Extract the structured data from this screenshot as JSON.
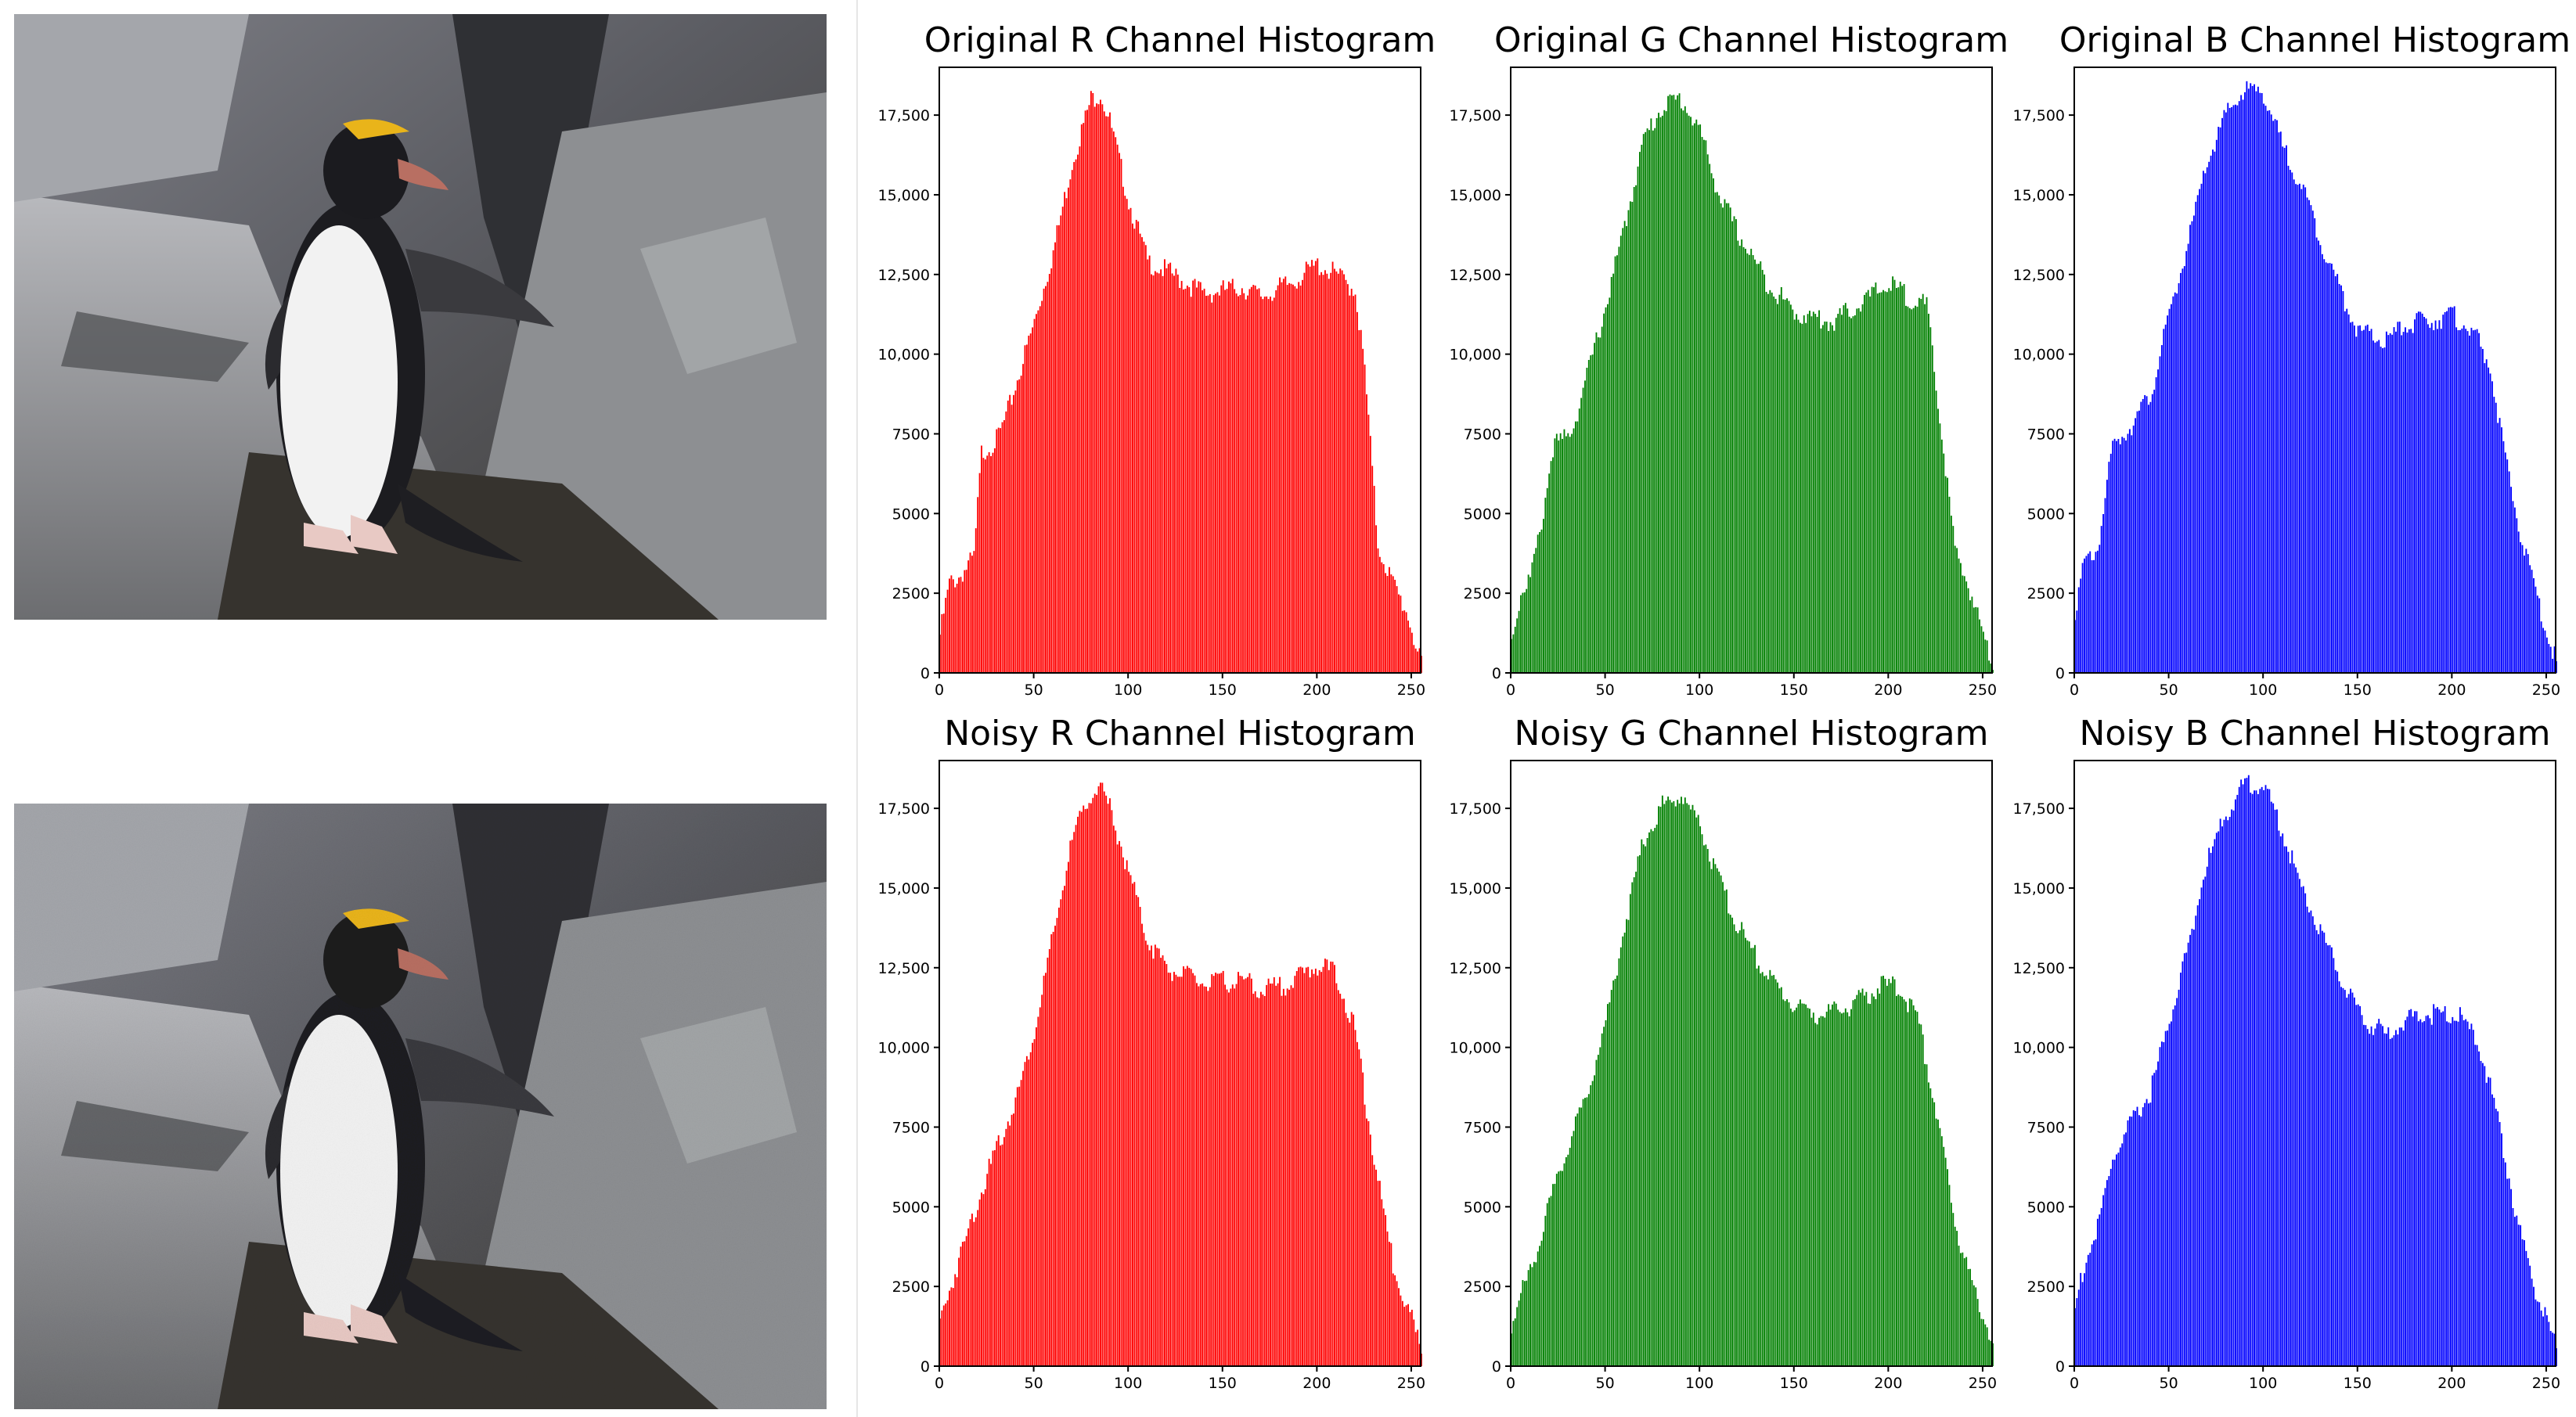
{
  "images": [
    {
      "label": "original-penguin-photo"
    },
    {
      "label": "noisy-penguin-photo"
    }
  ],
  "colors": {
    "R": "#ff0000",
    "G": "#008000",
    "B": "#0000ff"
  },
  "chart_data": [
    {
      "id": "orig-r",
      "type": "bar",
      "title": "Original R Channel Histogram",
      "channel": "R",
      "color": "#ff0000",
      "xlim": [
        0,
        255
      ],
      "ylim": [
        0,
        19000
      ],
      "xticks": [
        0,
        50,
        100,
        150,
        200,
        250
      ],
      "yticks": [
        0,
        2500,
        5000,
        7500,
        10000,
        12500,
        15000,
        17500
      ],
      "ytick_labels": [
        "0",
        "2500",
        "5000",
        "7500",
        "10,000",
        "12,500",
        "15,000",
        "17,500"
      ],
      "bins": 256,
      "profile": [
        [
          0,
          1200
        ],
        [
          5,
          2800
        ],
        [
          10,
          3000
        ],
        [
          18,
          3600
        ],
        [
          22,
          6900
        ],
        [
          30,
          7300
        ],
        [
          35,
          8000
        ],
        [
          50,
          11000
        ],
        [
          60,
          13200
        ],
        [
          70,
          16000
        ],
        [
          80,
          18000
        ],
        [
          85,
          18200
        ],
        [
          90,
          17300
        ],
        [
          100,
          14800
        ],
        [
          110,
          12900
        ],
        [
          120,
          12600
        ],
        [
          140,
          11900
        ],
        [
          160,
          12100
        ],
        [
          170,
          11800
        ],
        [
          185,
          12200
        ],
        [
          200,
          12800
        ],
        [
          210,
          12500
        ],
        [
          220,
          12000
        ],
        [
          225,
          9500
        ],
        [
          232,
          4000
        ],
        [
          240,
          2800
        ],
        [
          248,
          1800
        ],
        [
          255,
          200
        ]
      ]
    },
    {
      "id": "orig-g",
      "type": "bar",
      "title": "Original G Channel Histogram",
      "channel": "G",
      "color": "#008000",
      "xlim": [
        0,
        255
      ],
      "ylim": [
        0,
        19000
      ],
      "xticks": [
        0,
        50,
        100,
        150,
        200,
        250
      ],
      "yticks": [
        0,
        2500,
        5000,
        7500,
        10000,
        12500,
        15000,
        17500
      ],
      "ytick_labels": [
        "0",
        "2500",
        "5000",
        "7500",
        "10,000",
        "12,500",
        "15,000",
        "17,500"
      ],
      "bins": 256,
      "profile": [
        [
          0,
          1000
        ],
        [
          5,
          2500
        ],
        [
          10,
          3000
        ],
        [
          15,
          4300
        ],
        [
          22,
          7100
        ],
        [
          30,
          7400
        ],
        [
          35,
          8200
        ],
        [
          50,
          11500
        ],
        [
          60,
          14000
        ],
        [
          70,
          16700
        ],
        [
          80,
          17800
        ],
        [
          90,
          18000
        ],
        [
          100,
          17000
        ],
        [
          110,
          15000
        ],
        [
          120,
          13800
        ],
        [
          135,
          12300
        ],
        [
          150,
          11300
        ],
        [
          170,
          11000
        ],
        [
          185,
          11600
        ],
        [
          200,
          12200
        ],
        [
          210,
          11800
        ],
        [
          220,
          11500
        ],
        [
          228,
          7500
        ],
        [
          235,
          3800
        ],
        [
          243,
          2600
        ],
        [
          250,
          1200
        ],
        [
          255,
          300
        ]
      ]
    },
    {
      "id": "orig-b",
      "type": "bar",
      "title": "Original B Channel Histogram",
      "channel": "B",
      "color": "#0000ff",
      "xlim": [
        0,
        255
      ],
      "ylim": [
        0,
        19000
      ],
      "xticks": [
        0,
        50,
        100,
        150,
        200,
        250
      ],
      "yticks": [
        0,
        2500,
        5000,
        7500,
        10000,
        12500,
        15000,
        17500
      ],
      "ytick_labels": [
        "0",
        "2500",
        "5000",
        "7500",
        "10,000",
        "12,500",
        "15,000",
        "17,500"
      ],
      "bins": 256,
      "profile": [
        [
          0,
          2000
        ],
        [
          5,
          3400
        ],
        [
          12,
          3900
        ],
        [
          20,
          7100
        ],
        [
          30,
          7800
        ],
        [
          40,
          8700
        ],
        [
          50,
          11200
        ],
        [
          60,
          13500
        ],
        [
          70,
          16000
        ],
        [
          80,
          17500
        ],
        [
          90,
          18300
        ],
        [
          100,
          18200
        ],
        [
          110,
          16500
        ],
        [
          120,
          15300
        ],
        [
          135,
          12800
        ],
        [
          150,
          10700
        ],
        [
          165,
          10400
        ],
        [
          175,
          10900
        ],
        [
          190,
          11100
        ],
        [
          200,
          11200
        ],
        [
          210,
          10800
        ],
        [
          220,
          9600
        ],
        [
          230,
          6000
        ],
        [
          238,
          3900
        ],
        [
          246,
          2100
        ],
        [
          255,
          300
        ]
      ]
    },
    {
      "id": "noisy-r",
      "type": "bar",
      "title": "Noisy R Channel Histogram",
      "channel": "R",
      "color": "#ff0000",
      "xlim": [
        0,
        255
      ],
      "ylim": [
        0,
        19000
      ],
      "xticks": [
        0,
        50,
        100,
        150,
        200,
        250
      ],
      "yticks": [
        0,
        2500,
        5000,
        7500,
        10000,
        12500,
        15000,
        17500
      ],
      "ytick_labels": [
        "0",
        "2500",
        "5000",
        "7500",
        "10,000",
        "12,500",
        "15,000",
        "17,500"
      ],
      "bins": 256,
      "profile": [
        [
          0,
          1400
        ],
        [
          5,
          2400
        ],
        [
          10,
          3300
        ],
        [
          20,
          5200
        ],
        [
          30,
          6800
        ],
        [
          40,
          8300
        ],
        [
          50,
          10500
        ],
        [
          60,
          13500
        ],
        [
          70,
          16500
        ],
        [
          80,
          18000
        ],
        [
          85,
          18100
        ],
        [
          90,
          17500
        ],
        [
          100,
          15500
        ],
        [
          110,
          13400
        ],
        [
          120,
          12500
        ],
        [
          140,
          12000
        ],
        [
          160,
          12100
        ],
        [
          170,
          11800
        ],
        [
          185,
          12000
        ],
        [
          200,
          12600
        ],
        [
          210,
          12300
        ],
        [
          220,
          10500
        ],
        [
          230,
          6500
        ],
        [
          240,
          3200
        ],
        [
          250,
          1500
        ],
        [
          255,
          400
        ]
      ]
    },
    {
      "id": "noisy-g",
      "type": "bar",
      "title": "Noisy G Channel Histogram",
      "channel": "G",
      "color": "#008000",
      "xlim": [
        0,
        255
      ],
      "ylim": [
        0,
        19000
      ],
      "xticks": [
        0,
        50,
        100,
        150,
        200,
        250
      ],
      "yticks": [
        0,
        2500,
        5000,
        7500,
        10000,
        12500,
        15000,
        17500
      ],
      "ytick_labels": [
        "0",
        "2500",
        "5000",
        "7500",
        "10,000",
        "12,500",
        "15,000",
        "17,500"
      ],
      "bins": 256,
      "profile": [
        [
          0,
          1300
        ],
        [
          5,
          2200
        ],
        [
          10,
          3000
        ],
        [
          20,
          5000
        ],
        [
          30,
          6900
        ],
        [
          40,
          8500
        ],
        [
          50,
          10800
        ],
        [
          60,
          13800
        ],
        [
          70,
          16500
        ],
        [
          80,
          17600
        ],
        [
          90,
          17900
        ],
        [
          100,
          17000
        ],
        [
          110,
          15200
        ],
        [
          120,
          13800
        ],
        [
          135,
          12300
        ],
        [
          150,
          11300
        ],
        [
          165,
          11000
        ],
        [
          180,
          11300
        ],
        [
          195,
          11900
        ],
        [
          205,
          11900
        ],
        [
          215,
          11000
        ],
        [
          225,
          8000
        ],
        [
          235,
          4500
        ],
        [
          245,
          2400
        ],
        [
          255,
          800
        ]
      ]
    },
    {
      "id": "noisy-b",
      "type": "bar",
      "title": "Noisy B Channel Histogram",
      "channel": "B",
      "color": "#0000ff",
      "xlim": [
        0,
        255
      ],
      "ylim": [
        0,
        19000
      ],
      "xticks": [
        0,
        50,
        100,
        150,
        200,
        250
      ],
      "yticks": [
        0,
        2500,
        5000,
        7500,
        10000,
        12500,
        15000,
        17500
      ],
      "ytick_labels": [
        "0",
        "2500",
        "5000",
        "7500",
        "10,000",
        "12,500",
        "15,000",
        "17,500"
      ],
      "bins": 256,
      "profile": [
        [
          0,
          1800
        ],
        [
          5,
          3200
        ],
        [
          12,
          4300
        ],
        [
          20,
          6500
        ],
        [
          30,
          7600
        ],
        [
          40,
          8600
        ],
        [
          50,
          10800
        ],
        [
          60,
          13200
        ],
        [
          70,
          15800
        ],
        [
          80,
          17300
        ],
        [
          90,
          18300
        ],
        [
          100,
          18200
        ],
        [
          110,
          16800
        ],
        [
          120,
          15000
        ],
        [
          135,
          13000
        ],
        [
          150,
          11000
        ],
        [
          165,
          10400
        ],
        [
          180,
          11000
        ],
        [
          195,
          11100
        ],
        [
          205,
          10900
        ],
        [
          215,
          9900
        ],
        [
          225,
          7500
        ],
        [
          235,
          4300
        ],
        [
          245,
          2200
        ],
        [
          255,
          500
        ]
      ]
    }
  ]
}
